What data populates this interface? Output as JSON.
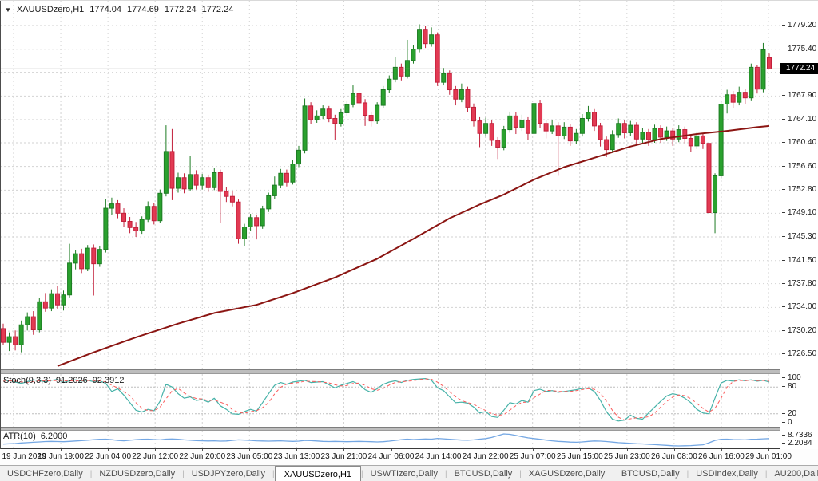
{
  "header": {
    "symbol": "XAUUSDzero,H1",
    "open": "1774.04",
    "high": "1774.69",
    "low": "1772.24",
    "close": "1772.24"
  },
  "icons": {
    "dropdown": "▼",
    "tab_scroll_left": "◄",
    "tab_scroll_right": "►"
  },
  "price_axis": {
    "labels": [
      "1779.20",
      "1775.40",
      "1771.70",
      "1767.90",
      "1764.10",
      "1760.40",
      "1756.60",
      "1752.80",
      "1749.10",
      "1745.30",
      "1741.50",
      "1737.80",
      "1734.00",
      "1730.20",
      "1726.50"
    ],
    "current_price": "1772.24"
  },
  "time_axis": {
    "labels": [
      "19 Jun 2020",
      "19 Jun 19:00",
      "22 Jun 04:00",
      "22 Jun 12:00",
      "22 Jun 20:00",
      "23 Jun 05:00",
      "23 Jun 13:00",
      "23 Jun 21:00",
      "24 Jun 06:00",
      "24 Jun 14:00",
      "24 Jun 22:00",
      "25 Jun 07:00",
      "25 Jun 15:00",
      "25 Jun 23:00",
      "26 Jun 08:00",
      "26 Jun 16:00",
      "29 Jun 01:00"
    ]
  },
  "indicators": {
    "stoch": {
      "label": "Stoch(9,3,3)",
      "k_value": "91.2026",
      "d_value": "92.3912",
      "axis_labels": [
        "100",
        "80",
        "20",
        "0"
      ],
      "axis_values": [
        100,
        80,
        20,
        0
      ],
      "levels": [
        80,
        20
      ]
    },
    "atr": {
      "label": "ATR(10)",
      "value": "6.2000",
      "axis_labels": [
        "8.7336",
        "2.2084"
      ]
    }
  },
  "tabs": {
    "items": [
      "USDCHFzero,Daily",
      "NZDUSDzero,Daily",
      "USDJPYzero,Daily",
      "XAUUSDzero,H1",
      "USWTIzero,Daily",
      "BTCUSD,Daily",
      "XAGUSDzero,Daily",
      "BTCUSD,Daily",
      "USDIndex,Daily",
      "AU200,Daily"
    ],
    "active_index": 3
  },
  "colors": {
    "bull": "#2aa12e",
    "bull_border": "#1d7c23",
    "bear": "#e23a53",
    "bear_border": "#c21f3a",
    "ma": "#8b1512",
    "stoch_k": "#46b2a8",
    "stoch_d": "#fa5b5b",
    "atr": "#74a7e3",
    "grid": "#d2d2d2",
    "level": "#bdbdbd",
    "current_price_line": "#8c8c8c",
    "price_tag_bg": "#000000"
  },
  "chart_data": [
    {
      "type": "candlestick",
      "name": "XAUUSDzero H1",
      "title": "XAUUSDzero,H1 1774.04 1774.69 1772.24 1772.24",
      "ylim": [
        1726.5,
        1779.2
      ],
      "grid": true,
      "ohlc": [
        [
          1730.6,
          1731.4,
          1727.9,
          1728.4
        ],
        [
          1728.4,
          1730.0,
          1727.0,
          1729.3
        ],
        [
          1729.3,
          1730.3,
          1727.1,
          1728.0
        ],
        [
          1728.0,
          1731.9,
          1726.8,
          1731.2
        ],
        [
          1731.2,
          1733.2,
          1730.3,
          1732.5
        ],
        [
          1732.5,
          1733.4,
          1729.6,
          1730.4
        ],
        [
          1730.4,
          1735.5,
          1730.0,
          1734.9
        ],
        [
          1734.9,
          1736.3,
          1733.3,
          1733.9
        ],
        [
          1733.9,
          1736.9,
          1733.4,
          1736.2
        ],
        [
          1736.2,
          1737.4,
          1733.8,
          1734.4
        ],
        [
          1734.4,
          1736.7,
          1733.5,
          1736.0
        ],
        [
          1736.0,
          1744.2,
          1735.6,
          1741.1
        ],
        [
          1741.1,
          1743.2,
          1740.1,
          1742.6
        ],
        [
          1742.6,
          1743.4,
          1739.5,
          1740.2
        ],
        [
          1740.2,
          1744.0,
          1739.8,
          1743.5
        ],
        [
          1743.5,
          1744.1,
          1735.9,
          1741.0
        ],
        [
          1741.0,
          1743.9,
          1740.5,
          1743.3
        ],
        [
          1743.3,
          1751.4,
          1742.8,
          1749.9
        ],
        [
          1749.9,
          1751.6,
          1748.8,
          1750.6
        ],
        [
          1750.6,
          1751.2,
          1748.3,
          1749.1
        ],
        [
          1749.1,
          1749.9,
          1746.9,
          1747.8
        ],
        [
          1747.8,
          1748.5,
          1745.9,
          1746.8
        ],
        [
          1746.8,
          1747.7,
          1745.3,
          1746.3
        ],
        [
          1746.3,
          1748.6,
          1745.8,
          1748.1
        ],
        [
          1748.1,
          1751.0,
          1747.7,
          1750.2
        ],
        [
          1750.2,
          1750.8,
          1747.3,
          1747.9
        ],
        [
          1747.9,
          1752.9,
          1747.5,
          1752.3
        ],
        [
          1752.3,
          1763.2,
          1751.8,
          1759.0
        ],
        [
          1759.0,
          1762.6,
          1751.2,
          1753.1
        ],
        [
          1753.1,
          1755.6,
          1752.4,
          1754.8
        ],
        [
          1754.8,
          1755.5,
          1752.3,
          1753.0
        ],
        [
          1753.0,
          1758.3,
          1752.6,
          1755.3
        ],
        [
          1755.3,
          1756.0,
          1752.9,
          1753.6
        ],
        [
          1753.6,
          1755.4,
          1752.9,
          1754.8
        ],
        [
          1754.8,
          1755.3,
          1752.5,
          1753.2
        ],
        [
          1753.2,
          1756.3,
          1752.8,
          1755.6
        ],
        [
          1755.6,
          1756.1,
          1747.6,
          1752.6
        ],
        [
          1752.6,
          1753.3,
          1750.9,
          1751.8
        ],
        [
          1751.8,
          1752.6,
          1750.2,
          1750.9
        ],
        [
          1750.9,
          1751.3,
          1744.2,
          1745.0
        ],
        [
          1745.0,
          1747.4,
          1743.9,
          1746.9
        ],
        [
          1746.9,
          1749.0,
          1746.3,
          1748.4
        ],
        [
          1748.4,
          1748.9,
          1744.9,
          1747.1
        ],
        [
          1747.1,
          1750.3,
          1746.6,
          1749.8
        ],
        [
          1749.8,
          1752.4,
          1749.3,
          1751.9
        ],
        [
          1751.9,
          1755.0,
          1751.4,
          1753.6
        ],
        [
          1753.6,
          1756.2,
          1753.1,
          1755.5
        ],
        [
          1755.5,
          1756.1,
          1753.4,
          1754.1
        ],
        [
          1754.1,
          1757.6,
          1753.7,
          1757.0
        ],
        [
          1757.0,
          1759.9,
          1756.5,
          1759.2
        ],
        [
          1759.2,
          1767.5,
          1758.7,
          1766.3
        ],
        [
          1766.3,
          1766.9,
          1763.4,
          1764.1
        ],
        [
          1764.1,
          1765.6,
          1763.6,
          1764.7
        ],
        [
          1764.7,
          1766.4,
          1764.2,
          1765.8
        ],
        [
          1765.8,
          1766.3,
          1763.7,
          1764.3
        ],
        [
          1764.3,
          1764.9,
          1760.9,
          1763.5
        ],
        [
          1763.5,
          1765.8,
          1763.0,
          1765.2
        ],
        [
          1765.2,
          1767.1,
          1764.7,
          1766.5
        ],
        [
          1766.5,
          1769.6,
          1766.1,
          1768.3
        ],
        [
          1768.3,
          1768.9,
          1766.2,
          1766.8
        ],
        [
          1766.8,
          1767.4,
          1763.1,
          1764.8
        ],
        [
          1764.8,
          1765.4,
          1763.0,
          1763.9
        ],
        [
          1763.9,
          1766.9,
          1763.4,
          1766.4
        ],
        [
          1766.4,
          1769.5,
          1766.0,
          1768.9
        ],
        [
          1768.9,
          1771.2,
          1768.4,
          1770.6
        ],
        [
          1770.6,
          1774.2,
          1770.1,
          1772.5
        ],
        [
          1772.5,
          1773.1,
          1770.4,
          1771.1
        ],
        [
          1771.1,
          1776.9,
          1770.7,
          1773.6
        ],
        [
          1773.6,
          1776.0,
          1773.1,
          1775.4
        ],
        [
          1775.4,
          1779.4,
          1774.9,
          1778.6
        ],
        [
          1778.6,
          1779.2,
          1775.6,
          1776.3
        ],
        [
          1776.3,
          1778.9,
          1775.8,
          1777.7
        ],
        [
          1777.7,
          1778.1,
          1769.5,
          1770.1
        ],
        [
          1770.1,
          1772.4,
          1769.6,
          1771.5
        ],
        [
          1771.5,
          1772.0,
          1768.1,
          1768.9
        ],
        [
          1768.9,
          1769.5,
          1766.4,
          1767.4
        ],
        [
          1767.4,
          1769.9,
          1766.9,
          1768.9
        ],
        [
          1768.9,
          1769.4,
          1765.3,
          1766.1
        ],
        [
          1766.1,
          1766.7,
          1763.0,
          1763.9
        ],
        [
          1763.9,
          1764.5,
          1759.7,
          1761.9
        ],
        [
          1761.9,
          1764.4,
          1761.4,
          1763.5
        ],
        [
          1763.5,
          1764.1,
          1759.9,
          1760.8
        ],
        [
          1760.8,
          1761.3,
          1757.8,
          1759.7
        ],
        [
          1759.7,
          1763.1,
          1759.2,
          1762.5
        ],
        [
          1762.5,
          1765.4,
          1762.0,
          1764.7
        ],
        [
          1764.7,
          1765.3,
          1761.8,
          1762.9
        ],
        [
          1762.9,
          1764.9,
          1762.3,
          1764.0
        ],
        [
          1764.0,
          1764.5,
          1760.9,
          1761.9
        ],
        [
          1761.9,
          1769.3,
          1761.4,
          1766.7
        ],
        [
          1766.7,
          1767.3,
          1762.7,
          1763.5
        ],
        [
          1763.5,
          1764.1,
          1761.1,
          1762.3
        ],
        [
          1762.3,
          1764.1,
          1761.8,
          1763.1
        ],
        [
          1763.1,
          1763.7,
          1755.1,
          1761.5
        ],
        [
          1761.5,
          1763.7,
          1761.0,
          1762.9
        ],
        [
          1762.9,
          1763.4,
          1759.9,
          1760.7
        ],
        [
          1760.7,
          1762.6,
          1760.2,
          1761.9
        ],
        [
          1761.9,
          1765.0,
          1761.4,
          1764.3
        ],
        [
          1764.3,
          1766.3,
          1763.8,
          1765.3
        ],
        [
          1765.3,
          1765.8,
          1762.3,
          1763.1
        ],
        [
          1763.1,
          1763.6,
          1759.8,
          1760.9
        ],
        [
          1760.9,
          1761.4,
          1758.1,
          1759.3
        ],
        [
          1759.3,
          1762.4,
          1758.9,
          1761.7
        ],
        [
          1761.7,
          1764.3,
          1761.2,
          1763.5
        ],
        [
          1763.5,
          1764.0,
          1761.1,
          1762.0
        ],
        [
          1762.0,
          1763.9,
          1761.5,
          1763.2
        ],
        [
          1763.2,
          1763.7,
          1760.1,
          1761.0
        ],
        [
          1761.0,
          1762.8,
          1760.4,
          1762.1
        ],
        [
          1762.1,
          1762.6,
          1759.9,
          1760.9
        ],
        [
          1760.9,
          1763.3,
          1760.4,
          1762.7
        ],
        [
          1762.7,
          1763.2,
          1760.4,
          1761.3
        ],
        [
          1761.3,
          1763.0,
          1760.7,
          1762.3
        ],
        [
          1762.3,
          1762.8,
          1759.9,
          1761.0
        ],
        [
          1761.0,
          1763.2,
          1760.5,
          1762.5
        ],
        [
          1762.5,
          1763.0,
          1760.3,
          1761.1
        ],
        [
          1761.1,
          1761.6,
          1758.9,
          1759.9
        ],
        [
          1759.9,
          1762.2,
          1759.4,
          1761.5
        ],
        [
          1761.5,
          1762.0,
          1759.4,
          1760.3
        ],
        [
          1760.3,
          1760.9,
          1748.6,
          1749.2
        ],
        [
          1749.2,
          1755.5,
          1745.9,
          1755.1
        ],
        [
          1755.1,
          1767.0,
          1754.5,
          1766.6
        ],
        [
          1766.6,
          1768.9,
          1765.1,
          1768.1
        ],
        [
          1768.1,
          1768.7,
          1765.9,
          1766.9
        ],
        [
          1766.9,
          1769.4,
          1766.4,
          1768.5
        ],
        [
          1768.5,
          1769.0,
          1766.6,
          1767.6
        ],
        [
          1767.6,
          1773.1,
          1767.2,
          1772.5
        ],
        [
          1772.5,
          1772.9,
          1768.3,
          1769.0
        ],
        [
          1769.0,
          1776.4,
          1768.5,
          1775.3
        ],
        [
          1774.04,
          1774.69,
          1772.24,
          1772.24
        ]
      ]
    },
    {
      "type": "line",
      "name": "moving-average-line",
      "points": [
        [
          9,
          1724.6
        ],
        [
          15,
          1726.8
        ],
        [
          22,
          1729.2
        ],
        [
          29,
          1731.4
        ],
        [
          35,
          1733.1
        ],
        [
          42,
          1734.4
        ],
        [
          48,
          1736.3
        ],
        [
          55,
          1738.8
        ],
        [
          62,
          1741.8
        ],
        [
          68,
          1745.0
        ],
        [
          74,
          1748.3
        ],
        [
          79,
          1750.5
        ],
        [
          83,
          1752.1
        ],
        [
          88,
          1754.5
        ],
        [
          93,
          1756.5
        ],
        [
          99,
          1758.3
        ],
        [
          104,
          1759.8
        ],
        [
          109,
          1761.0
        ],
        [
          115,
          1761.8
        ],
        [
          120,
          1762.3
        ],
        [
          125,
          1762.9
        ],
        [
          127,
          1763.1
        ]
      ]
    },
    {
      "type": "line",
      "name": "stochastic",
      "range": [
        0,
        100
      ],
      "levels": [
        80,
        20
      ],
      "d_smoothing": 3,
      "k_values": [
        93,
        95,
        91,
        88,
        92,
        96,
        94,
        92,
        95,
        97,
        90,
        94,
        96,
        93,
        95,
        92,
        94,
        88,
        70,
        76,
        62,
        45,
        28,
        24,
        30,
        27,
        48,
        86,
        80,
        65,
        55,
        58,
        50,
        52,
        46,
        55,
        38,
        30,
        20,
        19,
        25,
        30,
        26,
        45,
        65,
        84,
        90,
        86,
        91,
        93,
        95,
        90,
        91,
        92,
        85,
        78,
        84,
        88,
        92,
        86,
        74,
        68,
        76,
        86,
        91,
        94,
        90,
        95,
        97,
        98,
        99,
        95,
        78,
        72,
        58,
        45,
        46,
        44,
        35,
        22,
        25,
        14,
        12,
        28,
        45,
        42,
        50,
        46,
        72,
        75,
        70,
        72,
        68,
        70,
        72,
        74,
        77,
        78,
        70,
        50,
        25,
        8,
        4,
        6,
        17,
        10,
        8,
        22,
        35,
        48,
        60,
        65,
        62,
        55,
        45,
        30,
        22,
        20,
        55,
        89,
        95,
        93,
        96,
        94,
        96,
        93,
        95,
        91.2
      ]
    },
    {
      "type": "line",
      "name": "atr",
      "range": [
        2.2084,
        8.7336
      ],
      "values": [
        3.2,
        3.4,
        3.5,
        3.8,
        4.0,
        4.2,
        4.4,
        4.6,
        4.7,
        4.6,
        4.5,
        4.7,
        4.9,
        5.1,
        5.3,
        5.6,
        5.8,
        5.9,
        5.6,
        5.2,
        5.0,
        5.3,
        5.6,
        5.8,
        5.9,
        5.7,
        5.5,
        5.9,
        6.0,
        5.8,
        5.5,
        5.3,
        5.1,
        5.0,
        4.9,
        5.0,
        4.8,
        4.9,
        5.2,
        5.5,
        5.4,
        5.2,
        5.0,
        4.9,
        4.8,
        4.9,
        5.0,
        4.8,
        4.7,
        4.8,
        5.2,
        5.1,
        4.9,
        4.7,
        4.6,
        4.7,
        4.6,
        4.5,
        4.6,
        4.7,
        4.6,
        4.5,
        4.4,
        4.5,
        4.8,
        5.2,
        5.6,
        5.9,
        5.7,
        5.8,
        6.0,
        5.9,
        6.3,
        6.1,
        5.8,
        5.6,
        5.4,
        5.3,
        5.5,
        5.9,
        6.2,
        6.8,
        7.8,
        8.73,
        8.5,
        7.9,
        7.2,
        6.6,
        6.2,
        5.8,
        5.4,
        5.0,
        4.7,
        4.5,
        4.3,
        4.2,
        4.4,
        4.7,
        4.9,
        4.8,
        4.6,
        4.3,
        4.0,
        3.8,
        3.6,
        3.4,
        3.3,
        3.1,
        2.9,
        2.7,
        2.5,
        2.3,
        2.21,
        2.3,
        2.4,
        2.6,
        2.8,
        3.9,
        5.2,
        5.8,
        5.9,
        5.7,
        5.6,
        5.5,
        5.8,
        5.9,
        6.1,
        6.2
      ]
    }
  ]
}
